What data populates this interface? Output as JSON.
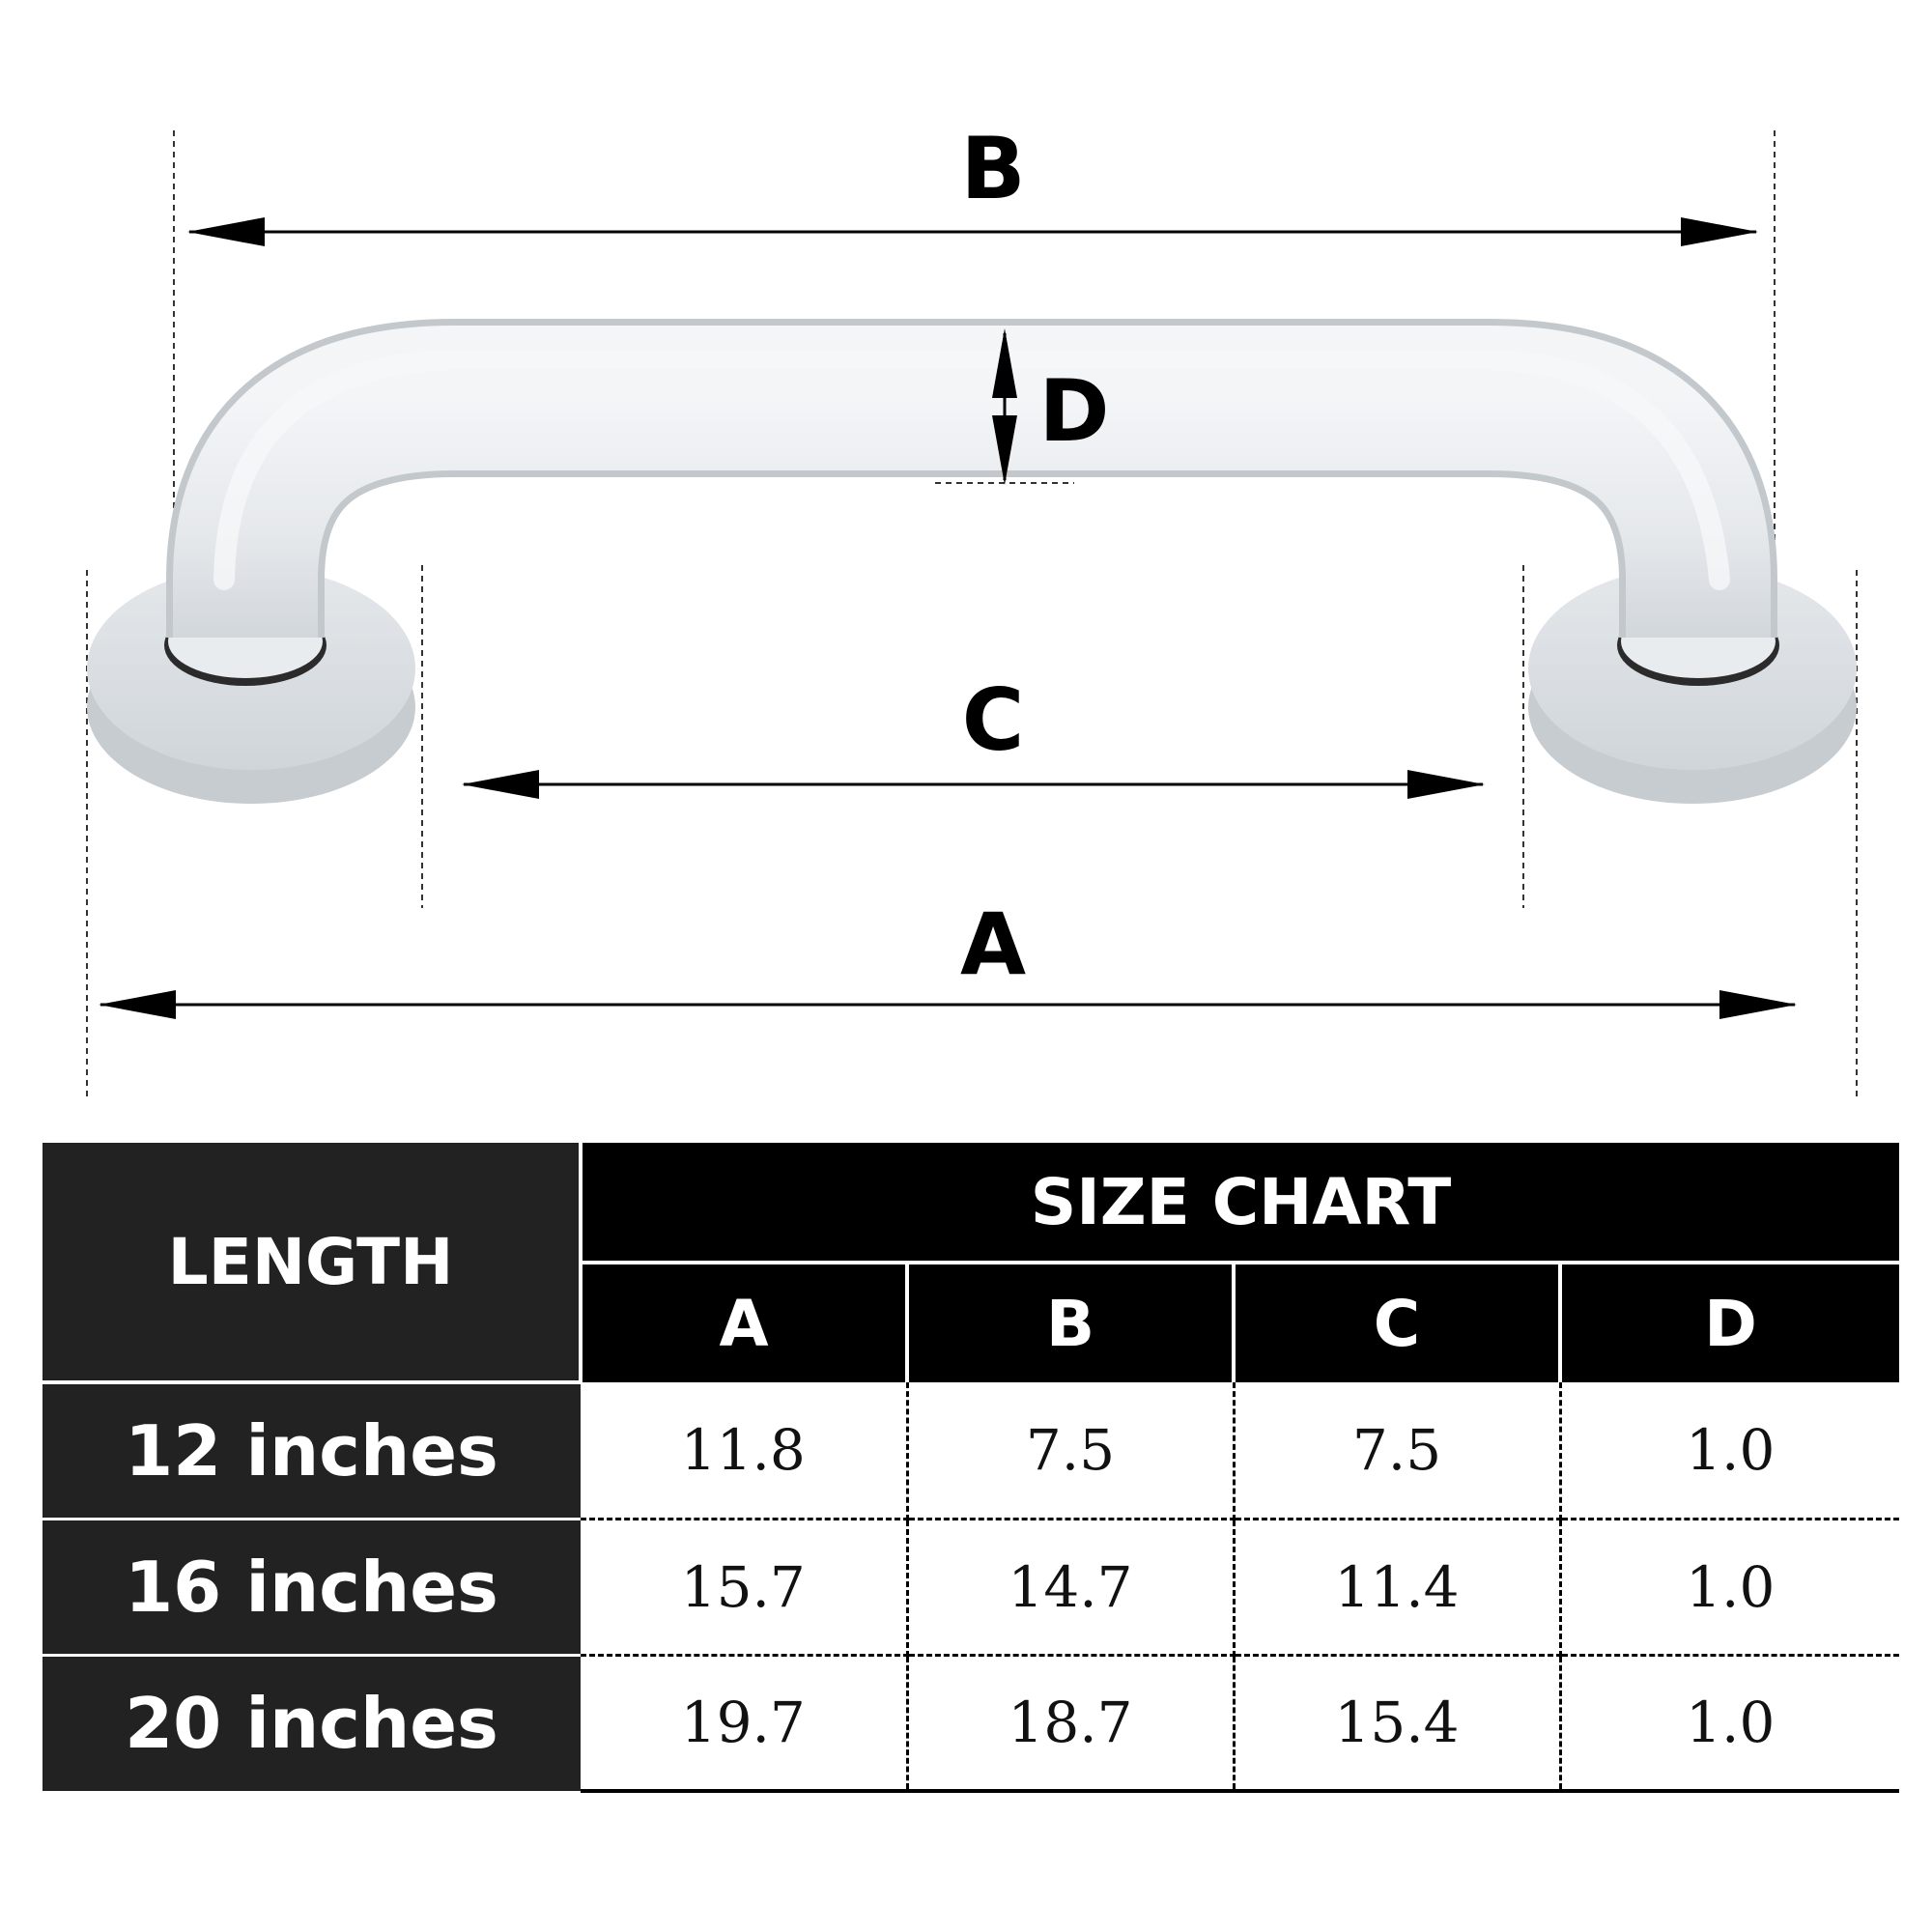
{
  "diagram": {
    "labels": {
      "a": "A",
      "b": "B",
      "c": "C",
      "d": "D"
    }
  },
  "table": {
    "row_header_label": "LENGTH",
    "title": "SIZE CHART",
    "columns": [
      "A",
      "B",
      "C",
      "D"
    ],
    "rows": [
      {
        "length": "12 inches",
        "values": [
          "11.8",
          "7.5",
          "7.5",
          "1.0"
        ]
      },
      {
        "length": "16 inches",
        "values": [
          "15.7",
          "14.7",
          "11.4",
          "1.0"
        ]
      },
      {
        "length": "20 inches",
        "values": [
          "19.7",
          "18.7",
          "15.4",
          "1.0"
        ]
      }
    ]
  },
  "colors": {
    "header_dark": "#222222",
    "header_black": "#000000",
    "bar_fill": "#e8ebee",
    "bar_shadow": "#c9ced3"
  }
}
